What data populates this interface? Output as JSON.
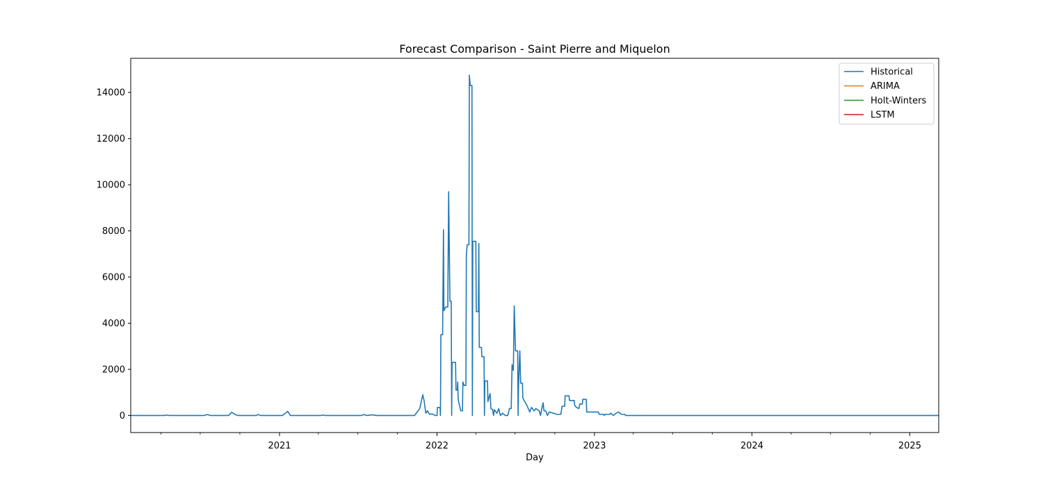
{
  "chart_data": {
    "type": "line",
    "title": "Forecast Comparison - Saint Pierre and Miquelon",
    "xlabel": "Day",
    "ylabel": "",
    "xlim": [
      "2020-01-22",
      "2025-03-09"
    ],
    "ylim": [
      -740,
      15480
    ],
    "x_ticks": [
      {
        "date": "2021-01-01",
        "label": "2021"
      },
      {
        "date": "2022-01-01",
        "label": "2022"
      },
      {
        "date": "2023-01-01",
        "label": "2023"
      },
      {
        "date": "2024-01-01",
        "label": "2024"
      },
      {
        "date": "2025-01-01",
        "label": "2025"
      }
    ],
    "y_ticks": [
      0,
      2000,
      4000,
      6000,
      8000,
      10000,
      12000,
      14000
    ],
    "grid": false,
    "legend_position": "top-right",
    "legend": [
      "Historical",
      "ARIMA",
      "Holt-Winters",
      "LSTM"
    ],
    "series": [
      {
        "name": "Historical",
        "color": "#1f77b4",
        "points": [
          [
            "2020-01-22",
            0
          ],
          [
            "2020-04-10",
            0
          ],
          [
            "2020-04-14",
            20
          ],
          [
            "2020-04-20",
            0
          ],
          [
            "2020-07-10",
            0
          ],
          [
            "2020-07-18",
            40
          ],
          [
            "2020-07-24",
            0
          ],
          [
            "2020-09-05",
            0
          ],
          [
            "2020-09-12",
            140
          ],
          [
            "2020-09-20",
            40
          ],
          [
            "2020-09-26",
            0
          ],
          [
            "2020-11-08",
            0
          ],
          [
            "2020-11-12",
            40
          ],
          [
            "2020-11-18",
            0
          ],
          [
            "2021-01-08",
            0
          ],
          [
            "2021-01-20",
            180
          ],
          [
            "2021-01-26",
            0
          ],
          [
            "2021-04-08",
            0
          ],
          [
            "2021-04-12",
            20
          ],
          [
            "2021-04-16",
            0
          ],
          [
            "2021-07-10",
            0
          ],
          [
            "2021-07-16",
            40
          ],
          [
            "2021-07-22",
            0
          ],
          [
            "2021-08-05",
            30
          ],
          [
            "2021-08-12",
            0
          ],
          [
            "2021-11-10",
            0
          ],
          [
            "2021-11-22",
            300
          ],
          [
            "2021-11-26",
            650
          ],
          [
            "2021-11-29",
            900
          ],
          [
            "2021-12-02",
            650
          ],
          [
            "2021-12-06",
            100
          ],
          [
            "2021-12-10",
            200
          ],
          [
            "2021-12-14",
            60
          ],
          [
            "2021-12-22",
            60
          ],
          [
            "2021-12-28",
            0
          ],
          [
            "2022-01-01",
            0
          ],
          [
            "2022-01-02",
            350
          ],
          [
            "2022-01-08",
            350
          ],
          [
            "2022-01-09",
            0
          ],
          [
            "2022-01-10",
            3500
          ],
          [
            "2022-01-14",
            3500
          ],
          [
            "2022-01-16",
            8050
          ],
          [
            "2022-01-17",
            4550
          ],
          [
            "2022-01-21",
            4700
          ],
          [
            "2022-01-26",
            4700
          ],
          [
            "2022-01-28",
            9700
          ],
          [
            "2022-01-31",
            4950
          ],
          [
            "2022-02-03",
            4950
          ],
          [
            "2022-02-04",
            0
          ],
          [
            "2022-02-05",
            2300
          ],
          [
            "2022-02-13",
            2300
          ],
          [
            "2022-02-14",
            1100
          ],
          [
            "2022-02-17",
            1100
          ],
          [
            "2022-02-18",
            1450
          ],
          [
            "2022-02-19",
            700
          ],
          [
            "2022-02-25",
            200
          ],
          [
            "2022-03-01",
            200
          ],
          [
            "2022-03-02",
            1450
          ],
          [
            "2022-03-05",
            1300
          ],
          [
            "2022-03-09",
            1300
          ],
          [
            "2022-03-10",
            6950
          ],
          [
            "2022-03-12",
            7400
          ],
          [
            "2022-03-16",
            7400
          ],
          [
            "2022-03-17",
            14750
          ],
          [
            "2022-03-19",
            14300
          ],
          [
            "2022-03-23",
            14300
          ],
          [
            "2022-03-24",
            0
          ],
          [
            "2022-03-25",
            7550
          ],
          [
            "2022-04-01",
            7550
          ],
          [
            "2022-04-02",
            4500
          ],
          [
            "2022-04-07",
            4500
          ],
          [
            "2022-04-08",
            7450
          ],
          [
            "2022-04-09",
            2950
          ],
          [
            "2022-04-14",
            2950
          ],
          [
            "2022-04-15",
            2550
          ],
          [
            "2022-04-20",
            2550
          ],
          [
            "2022-04-21",
            0
          ],
          [
            "2022-04-22",
            1500
          ],
          [
            "2022-04-28",
            1500
          ],
          [
            "2022-04-29",
            600
          ],
          [
            "2022-05-04",
            950
          ],
          [
            "2022-05-06",
            300
          ],
          [
            "2022-05-10",
            250
          ],
          [
            "2022-05-12",
            0
          ],
          [
            "2022-05-14",
            250
          ],
          [
            "2022-05-20",
            100
          ],
          [
            "2022-05-24",
            300
          ],
          [
            "2022-05-28",
            0
          ],
          [
            "2022-06-02",
            100
          ],
          [
            "2022-06-08",
            0
          ],
          [
            "2022-06-14",
            0
          ],
          [
            "2022-06-18",
            300
          ],
          [
            "2022-06-22",
            300
          ],
          [
            "2022-06-24",
            2200
          ],
          [
            "2022-06-27",
            1950
          ],
          [
            "2022-06-29",
            4750
          ],
          [
            "2022-07-02",
            2800
          ],
          [
            "2022-07-07",
            2800
          ],
          [
            "2022-07-08",
            0
          ],
          [
            "2022-07-09",
            1300
          ],
          [
            "2022-07-12",
            2800
          ],
          [
            "2022-07-14",
            1400
          ],
          [
            "2022-07-18",
            1400
          ],
          [
            "2022-07-19",
            750
          ],
          [
            "2022-07-28",
            450
          ],
          [
            "2022-08-04",
            150
          ],
          [
            "2022-08-08",
            350
          ],
          [
            "2022-08-14",
            200
          ],
          [
            "2022-08-18",
            300
          ],
          [
            "2022-08-26",
            200
          ],
          [
            "2022-08-29",
            0
          ],
          [
            "2022-09-01",
            300
          ],
          [
            "2022-09-04",
            550
          ],
          [
            "2022-09-06",
            200
          ],
          [
            "2022-09-10",
            200
          ],
          [
            "2022-09-14",
            0
          ],
          [
            "2022-09-18",
            150
          ],
          [
            "2022-09-28",
            100
          ],
          [
            "2022-10-05",
            50
          ],
          [
            "2022-10-15",
            50
          ],
          [
            "2022-10-18",
            400
          ],
          [
            "2022-10-24",
            400
          ],
          [
            "2022-10-25",
            850
          ],
          [
            "2022-11-03",
            850
          ],
          [
            "2022-11-04",
            650
          ],
          [
            "2022-11-15",
            650
          ],
          [
            "2022-11-16",
            450
          ],
          [
            "2022-11-20",
            350
          ],
          [
            "2022-11-26",
            300
          ],
          [
            "2022-11-28",
            500
          ],
          [
            "2022-12-04",
            500
          ],
          [
            "2022-12-05",
            700
          ],
          [
            "2022-12-13",
            700
          ],
          [
            "2022-12-14",
            150
          ],
          [
            "2022-12-20",
            150
          ],
          [
            "2023-01-10",
            150
          ],
          [
            "2023-01-12",
            50
          ],
          [
            "2023-01-22",
            50
          ],
          [
            "2023-01-24",
            0
          ],
          [
            "2023-01-26",
            50
          ],
          [
            "2023-02-06",
            50
          ],
          [
            "2023-02-08",
            100
          ],
          [
            "2023-02-14",
            0
          ],
          [
            "2023-02-20",
            100
          ],
          [
            "2023-02-26",
            150
          ],
          [
            "2023-03-04",
            50
          ],
          [
            "2023-03-12",
            50
          ],
          [
            "2023-03-14",
            0
          ],
          [
            "2025-03-09",
            0
          ]
        ]
      },
      {
        "name": "ARIMA",
        "color": "#ff7f0e",
        "points": []
      },
      {
        "name": "Holt-Winters",
        "color": "#2ca02c",
        "points": []
      },
      {
        "name": "LSTM",
        "color": "#d62728",
        "points": []
      }
    ]
  }
}
